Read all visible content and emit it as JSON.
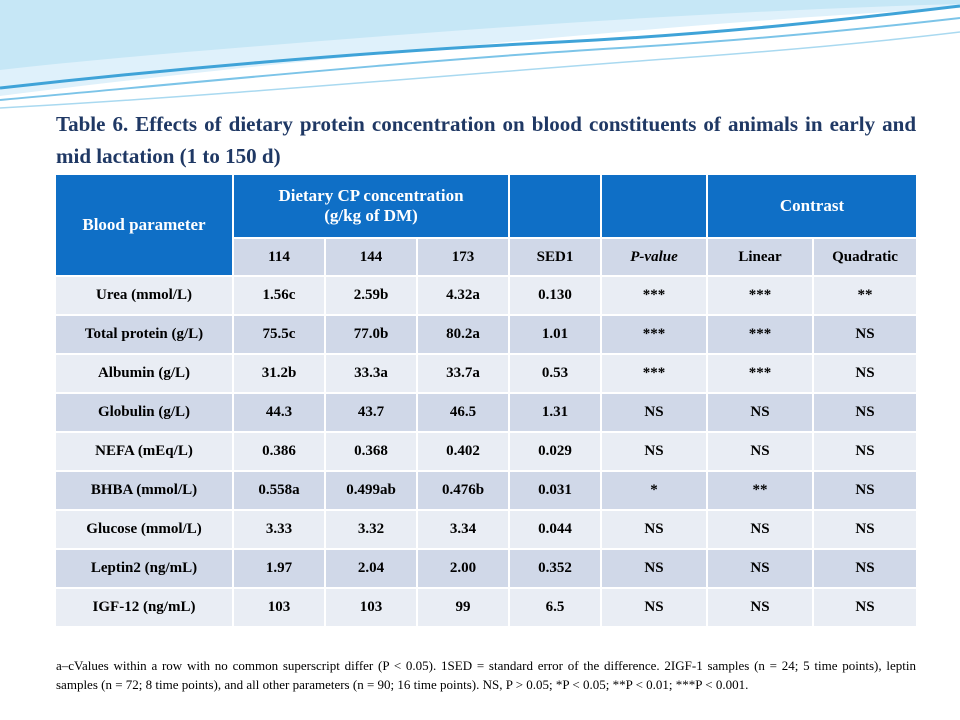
{
  "title": "Table 6. Effects of dietary protein concentration on blood constituents of animals in early and mid lactation (1 to 150 d)",
  "table": {
    "header": {
      "blood_parameter": "Blood parameter",
      "dietary_cp_line1": "Dietary CP concentration",
      "dietary_cp_line2": "(g/kg of DM)",
      "blank1": "",
      "blank2": "",
      "contrast": "Contrast"
    },
    "subheaders": [
      "114",
      "144",
      "173",
      "SED1",
      "P-value",
      "Linear",
      "Quadratic"
    ],
    "rows": [
      [
        "Urea (mmol/L)",
        "1.56c",
        "2.59b",
        "4.32a",
        "0.130",
        "***",
        "***",
        "**"
      ],
      [
        "Total protein (g/L)",
        "75.5c",
        "77.0b",
        "80.2a",
        "1.01",
        "***",
        "***",
        "NS"
      ],
      [
        "Albumin (g/L)",
        "31.2b",
        "33.3a",
        "33.7a",
        "0.53",
        "***",
        "***",
        "NS"
      ],
      [
        "Globulin (g/L)",
        "44.3",
        "43.7",
        "46.5",
        "1.31",
        "NS",
        "NS",
        "NS"
      ],
      [
        "NEFA (mEq/L)",
        "0.386",
        "0.368",
        "0.402",
        "0.029",
        "NS",
        "NS",
        "NS"
      ],
      [
        "BHBA (mmol/L)",
        "0.558a",
        "0.499ab",
        "0.476b",
        "0.031",
        "*",
        "**",
        "NS"
      ],
      [
        "Glucose (mmol/L)",
        "3.33",
        "3.32",
        "3.34",
        "0.044",
        "NS",
        "NS",
        "NS"
      ],
      [
        "Leptin2 (ng/mL)",
        "1.97",
        "2.04",
        "2.00",
        "0.352",
        "NS",
        "NS",
        "NS"
      ],
      [
        "IGF-12 (ng/mL)",
        "103",
        "103",
        "99",
        "6.5",
        "NS",
        "NS",
        "NS"
      ]
    ]
  },
  "footnote": "a–cValues within a row with no common superscript differ (P < 0.05). 1SED = standard error of the difference. 2IGF-1 samples (n = 24; 5 time points), leptin samples (n = 72; 8 time points), and all other parameters (n = 90; 16 time points). NS, P > 0.05; *P < 0.05; **P < 0.01; ***P < 0.001.",
  "colors": {
    "header_blue": "#0f6fc6",
    "row_light": "#e9edf4",
    "row_dark": "#d0d8e8",
    "title_text": "#1f3864"
  }
}
